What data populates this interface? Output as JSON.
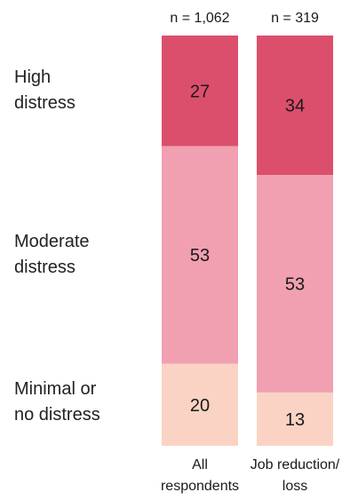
{
  "chart_data": {
    "type": "bar",
    "stacked": true,
    "orientation": "vertical",
    "categories": [
      "All respondents",
      "Job reduction/ loss"
    ],
    "category_label_lines": [
      [
        "All",
        "respondents"
      ],
      [
        "Job reduction/",
        "loss"
      ]
    ],
    "sample_sizes": [
      "n = 1,062",
      "n = 319"
    ],
    "series": [
      {
        "name": "High distress",
        "label_lines": [
          "High",
          "distress"
        ],
        "values": [
          27,
          34
        ],
        "color": "#dc4f6c"
      },
      {
        "name": "Moderate distress",
        "label_lines": [
          "Moderate",
          "distress"
        ],
        "values": [
          53,
          53
        ],
        "color": "#f0a0b1"
      },
      {
        "name": "Minimal or no distress",
        "label_lines": [
          "Minimal or",
          "no distress"
        ],
        "values": [
          20,
          13
        ],
        "color": "#fbd3c4"
      }
    ],
    "ylim": [
      0,
      100
    ],
    "grid": false,
    "legend": "left"
  }
}
